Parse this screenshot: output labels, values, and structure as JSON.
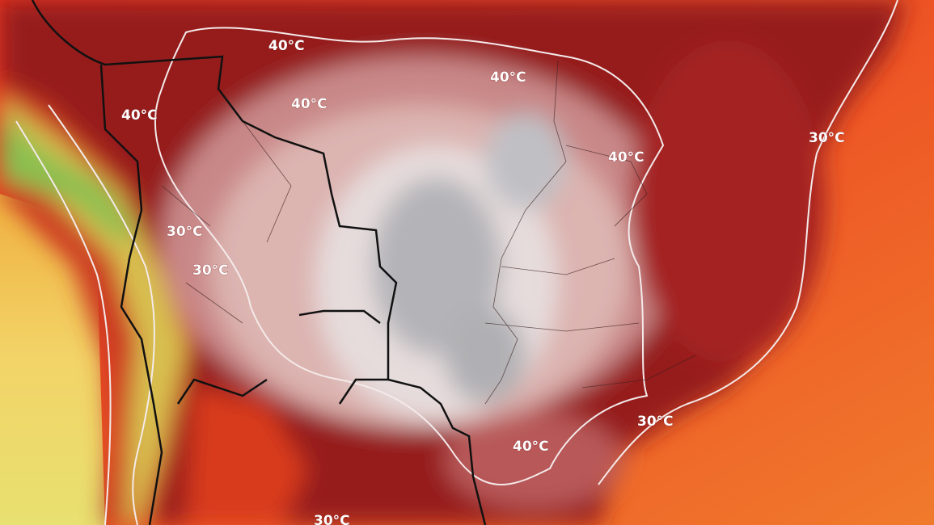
{
  "labels": [
    "40°C",
    "40°C",
    "40°C",
    "40°C",
    "40°C",
    "40°C",
    "30°C",
    "30°C",
    "30°C",
    "30°C",
    "30°C"
  ]
}
